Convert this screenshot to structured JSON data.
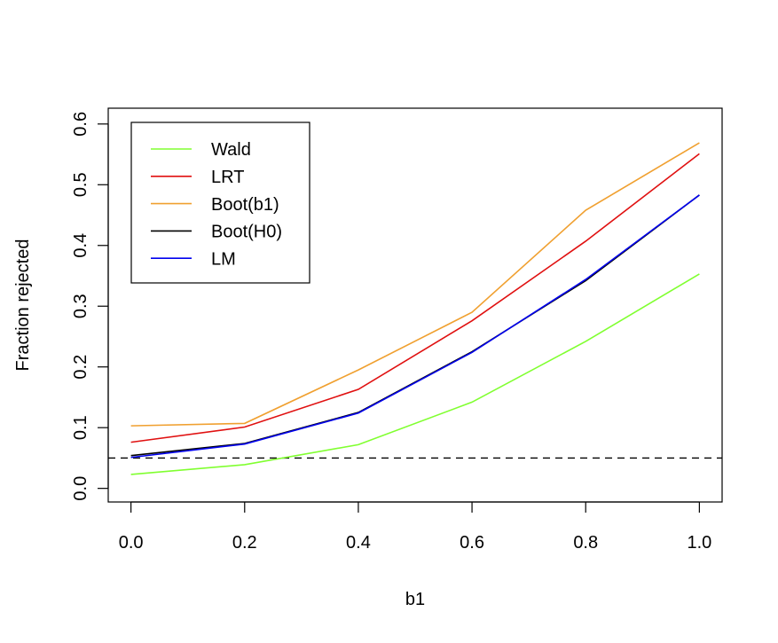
{
  "chart_data": {
    "type": "line",
    "title": "",
    "xlabel": "b1",
    "ylabel": "Fraction rejected",
    "xlim": [
      -0.04,
      1.04
    ],
    "ylim": [
      -0.0224,
      0.626
    ],
    "x": [
      0.0,
      0.2,
      0.4,
      0.6,
      0.8,
      1.0
    ],
    "xticks": [
      "0.0",
      "0.2",
      "0.4",
      "0.6",
      "0.8",
      "1.0"
    ],
    "yticks": [
      "0.0",
      "0.1",
      "0.2",
      "0.3",
      "0.4",
      "0.5",
      "0.6"
    ],
    "grid": false,
    "legend_position": "top-left",
    "reference_line": {
      "y": 0.05,
      "style": "dashed",
      "color": "#000000"
    },
    "series": [
      {
        "name": "Wald",
        "color": "#80ff30",
        "values": [
          0.023,
          0.039,
          0.072,
          0.142,
          0.242,
          0.353
        ]
      },
      {
        "name": "LRT",
        "color": "#e01010",
        "values": [
          0.076,
          0.101,
          0.163,
          0.276,
          0.407,
          0.551
        ]
      },
      {
        "name": "Boot(b1)",
        "color": "#f0a030",
        "values": [
          0.103,
          0.107,
          0.195,
          0.29,
          0.458,
          0.569
        ]
      },
      {
        "name": "Boot(H0)",
        "color": "#000000",
        "values": [
          0.054,
          0.074,
          0.125,
          0.225,
          0.342,
          0.483
        ]
      },
      {
        "name": "LM",
        "color": "#0000ee",
        "values": [
          0.051,
          0.073,
          0.124,
          0.224,
          0.344,
          0.483
        ]
      }
    ]
  }
}
